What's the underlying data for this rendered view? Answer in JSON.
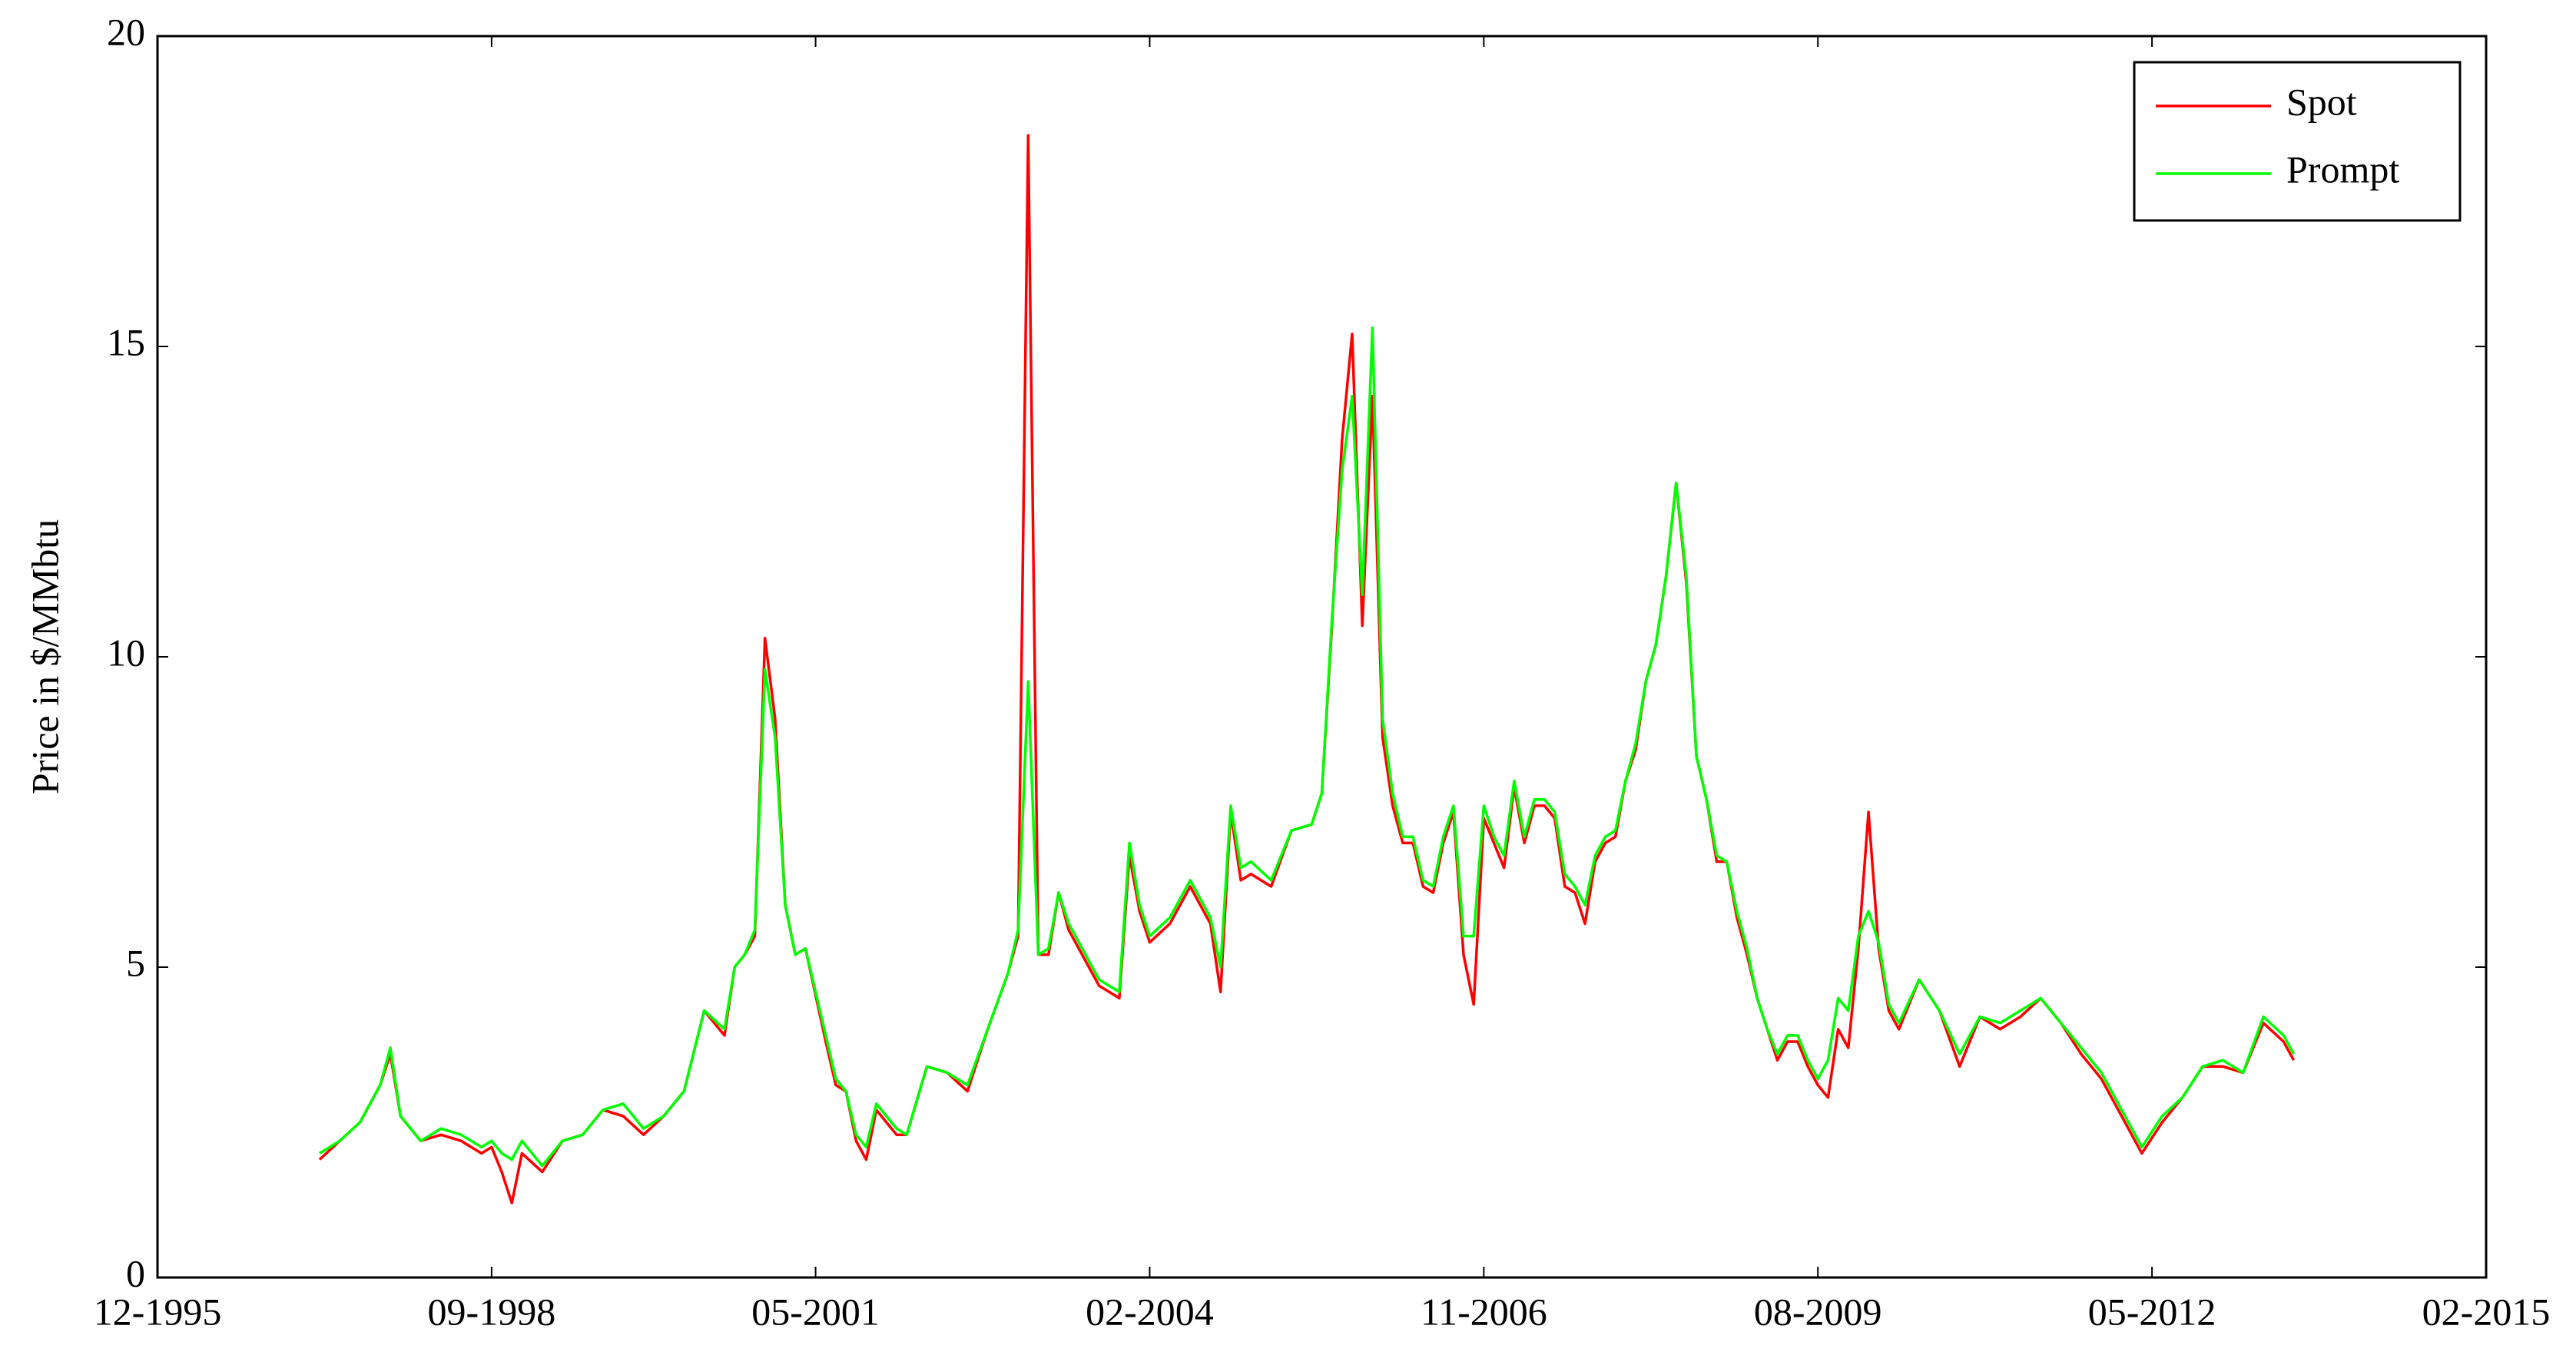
{
  "chart_data": {
    "type": "line",
    "y_label": "Price in $/MMbtu",
    "x": [
      "04-1997",
      "06-1997",
      "08-1997",
      "10-1997",
      "11-1997",
      "12-1997",
      "02-1998",
      "04-1998",
      "06-1998",
      "08-1998",
      "09-1998",
      "10-1998",
      "11-1998",
      "12-1998",
      "02-1999",
      "04-1999",
      "06-1999",
      "08-1999",
      "10-1999",
      "12-1999",
      "02-2000",
      "04-2000",
      "06-2000",
      "08-2000",
      "09-2000",
      "10-2000",
      "11-2000",
      "12-2000",
      "01-2001",
      "02-2001",
      "03-2001",
      "04-2001",
      "06-2001",
      "07-2001",
      "08-2001",
      "09-2001",
      "10-2001",
      "11-2001",
      "12-2001",
      "01-2002",
      "02-2002",
      "04-2002",
      "06-2002",
      "08-2002",
      "10-2002",
      "12-2002",
      "01-2003",
      "02-2003",
      "03-2003",
      "04-2003",
      "05-2003",
      "06-2003",
      "08-2003",
      "09-2003",
      "10-2003",
      "11-2003",
      "12-2003",
      "01-2004",
      "02-2004",
      "04-2004",
      "06-2004",
      "08-2004",
      "09-2004",
      "10-2004",
      "11-2004",
      "12-2004",
      "02-2005",
      "04-2005",
      "06-2005",
      "07-2005",
      "08-2005",
      "09-2005",
      "10-2005",
      "11-2005",
      "12-2005",
      "01-2006",
      "02-2006",
      "03-2006",
      "04-2006",
      "05-2006",
      "06-2006",
      "07-2006",
      "08-2006",
      "09-2006",
      "10-2006",
      "11-2006",
      "12-2006",
      "01-2007",
      "02-2007",
      "03-2007",
      "04-2007",
      "05-2007",
      "06-2007",
      "07-2007",
      "08-2007",
      "09-2007",
      "10-2007",
      "11-2007",
      "12-2007",
      "01-2008",
      "02-2008",
      "03-2008",
      "04-2008",
      "05-2008",
      "06-2008",
      "07-2008",
      "08-2008",
      "09-2008",
      "10-2008",
      "11-2008",
      "12-2008",
      "01-2009",
      "02-2009",
      "03-2009",
      "04-2009",
      "05-2009",
      "06-2009",
      "07-2009",
      "08-2009",
      "09-2009",
      "10-2009",
      "11-2009",
      "12-2009",
      "01-2010",
      "02-2010",
      "03-2010",
      "04-2010",
      "06-2010",
      "08-2010",
      "10-2010",
      "12-2010",
      "02-2011",
      "04-2011",
      "06-2011",
      "08-2011",
      "10-2011",
      "12-2011",
      "02-2012",
      "04-2012",
      "06-2012",
      "08-2012",
      "10-2012",
      "12-2012",
      "02-2013",
      "04-2013",
      "06-2013",
      "07-2013"
    ],
    "series": [
      {
        "name": "Spot",
        "color": "#ff0000",
        "values": [
          1.9,
          2.2,
          2.5,
          3.1,
          3.6,
          2.6,
          2.2,
          2.3,
          2.2,
          2.0,
          2.1,
          1.7,
          1.2,
          2.0,
          1.7,
          2.2,
          2.3,
          2.7,
          2.6,
          2.3,
          2.6,
          3.0,
          4.3,
          3.9,
          5.0,
          5.2,
          5.5,
          10.3,
          9.0,
          6.0,
          5.2,
          5.3,
          3.8,
          3.1,
          3.0,
          2.2,
          1.9,
          2.7,
          2.5,
          2.3,
          2.3,
          3.4,
          3.3,
          3.0,
          4.0,
          4.9,
          5.5,
          18.4,
          5.2,
          5.2,
          6.2,
          5.6,
          5.0,
          4.7,
          4.6,
          4.5,
          6.8,
          5.9,
          5.4,
          5.7,
          6.3,
          5.7,
          4.6,
          7.5,
          6.4,
          6.5,
          6.3,
          7.2,
          7.3,
          7.8,
          10.5,
          13.5,
          15.2,
          10.5,
          14.2,
          8.7,
          7.6,
          7.0,
          7.0,
          6.3,
          6.2,
          7.0,
          7.5,
          5.2,
          4.4,
          7.4,
          7.0,
          6.6,
          7.9,
          7.0,
          7.6,
          7.6,
          7.4,
          6.3,
          6.2,
          5.7,
          6.7,
          7.0,
          7.1,
          8.0,
          8.5,
          9.6,
          10.2,
          11.3,
          12.8,
          11.2,
          8.4,
          7.7,
          6.7,
          6.7,
          5.8,
          5.2,
          4.5,
          4.0,
          3.5,
          3.8,
          3.8,
          3.4,
          3.1,
          2.9,
          4.0,
          3.7,
          5.3,
          7.5,
          5.3,
          4.3,
          4.0,
          4.8,
          4.3,
          3.4,
          4.2,
          4.0,
          4.2,
          4.5,
          4.1,
          3.6,
          3.2,
          2.6,
          2.0,
          2.5,
          2.9,
          3.4,
          3.4,
          3.3,
          4.1,
          3.8,
          3.5
        ]
      },
      {
        "name": "Prompt",
        "color": "#00ff00",
        "values": [
          2.0,
          2.2,
          2.5,
          3.1,
          3.7,
          2.6,
          2.2,
          2.4,
          2.3,
          2.1,
          2.2,
          2.0,
          1.9,
          2.2,
          1.8,
          2.2,
          2.3,
          2.7,
          2.8,
          2.4,
          2.6,
          3.0,
          4.3,
          4.0,
          5.0,
          5.2,
          5.6,
          9.8,
          8.7,
          6.0,
          5.2,
          5.3,
          3.9,
          3.2,
          3.0,
          2.3,
          2.1,
          2.8,
          2.6,
          2.4,
          2.3,
          3.4,
          3.3,
          3.1,
          4.0,
          4.9,
          5.6,
          9.6,
          5.2,
          5.3,
          6.2,
          5.7,
          5.1,
          4.8,
          4.7,
          4.6,
          7.0,
          6.0,
          5.5,
          5.8,
          6.4,
          5.8,
          5.0,
          7.6,
          6.6,
          6.7,
          6.4,
          7.2,
          7.3,
          7.8,
          10.6,
          13.0,
          14.2,
          11.0,
          15.3,
          9.0,
          7.8,
          7.1,
          7.1,
          6.4,
          6.3,
          7.1,
          7.6,
          5.5,
          5.5,
          7.6,
          7.1,
          6.8,
          8.0,
          7.1,
          7.7,
          7.7,
          7.5,
          6.5,
          6.3,
          6.0,
          6.8,
          7.1,
          7.2,
          8.0,
          8.6,
          9.6,
          10.2,
          11.3,
          12.8,
          11.3,
          8.4,
          7.7,
          6.8,
          6.7,
          5.9,
          5.3,
          4.5,
          4.0,
          3.6,
          3.9,
          3.9,
          3.5,
          3.2,
          3.5,
          4.5,
          4.3,
          5.5,
          5.9,
          5.4,
          4.4,
          4.1,
          4.8,
          4.3,
          3.6,
          4.2,
          4.1,
          4.3,
          4.5,
          4.1,
          3.7,
          3.3,
          2.7,
          2.1,
          2.6,
          2.9,
          3.4,
          3.5,
          3.3,
          4.2,
          3.9,
          3.6
        ]
      }
    ],
    "xlim": [
      "12-1995",
      "02-2015"
    ],
    "xticks": [
      "12-1995",
      "09-1998",
      "05-2001",
      "02-2004",
      "11-2006",
      "08-2009",
      "05-2012",
      "02-2015"
    ],
    "ylim": [
      0,
      20
    ],
    "yticks": [
      0,
      5,
      10,
      15,
      20
    ],
    "grid": false,
    "legend": "north-east"
  }
}
